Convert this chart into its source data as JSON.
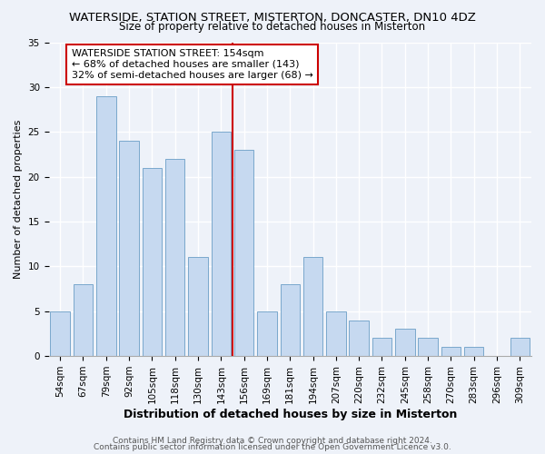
{
  "title": "WATERSIDE, STATION STREET, MISTERTON, DONCASTER, DN10 4DZ",
  "subtitle": "Size of property relative to detached houses in Misterton",
  "xlabel": "Distribution of detached houses by size in Misterton",
  "ylabel": "Number of detached properties",
  "bar_color": "#c6d9f0",
  "bar_edge_color": "#7aa8cc",
  "categories": [
    "54sqm",
    "67sqm",
    "79sqm",
    "92sqm",
    "105sqm",
    "118sqm",
    "130sqm",
    "143sqm",
    "156sqm",
    "169sqm",
    "181sqm",
    "194sqm",
    "207sqm",
    "220sqm",
    "232sqm",
    "245sqm",
    "258sqm",
    "270sqm",
    "283sqm",
    "296sqm",
    "309sqm"
  ],
  "values": [
    5,
    8,
    29,
    24,
    21,
    22,
    11,
    25,
    23,
    5,
    8,
    11,
    5,
    4,
    2,
    3,
    2,
    1,
    1,
    0,
    2
  ],
  "vline_x_index": 8,
  "vline_color": "#cc0000",
  "annotation_title": "WATERSIDE STATION STREET: 154sqm",
  "annotation_line1": "← 68% of detached houses are smaller (143)",
  "annotation_line2": "32% of semi-detached houses are larger (68) →",
  "annotation_box_color": "#ffffff",
  "annotation_box_edge": "#cc0000",
  "ylim": [
    0,
    35
  ],
  "yticks": [
    0,
    5,
    10,
    15,
    20,
    25,
    30,
    35
  ],
  "footer1": "Contains HM Land Registry data © Crown copyright and database right 2024.",
  "footer2": "Contains public sector information licensed under the Open Government Licence v3.0.",
  "background_color": "#eef2f9",
  "grid_color": "#ffffff",
  "title_fontsize": 9.5,
  "subtitle_fontsize": 8.5,
  "ylabel_fontsize": 8,
  "xlabel_fontsize": 9,
  "tick_fontsize": 7.5,
  "footer_fontsize": 6.5
}
